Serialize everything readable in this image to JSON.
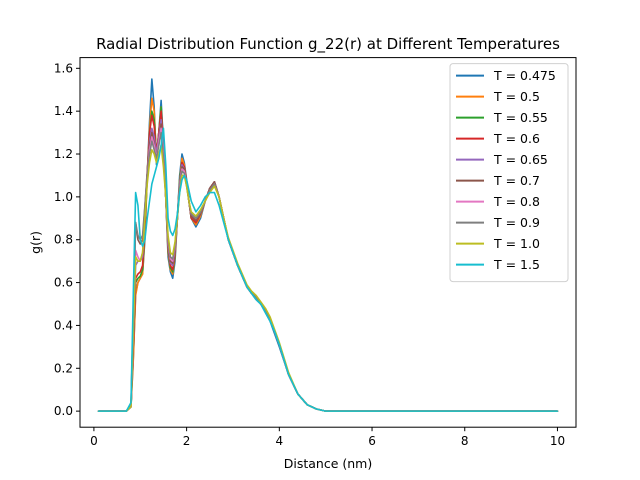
{
  "chart_data": {
    "type": "line",
    "title": "Radial Distribution Function g_22(r) at Different Temperatures",
    "xlabel": "Distance (nm)",
    "ylabel": "g(r)",
    "xlim": [
      -0.3,
      10.4
    ],
    "ylim": [
      -0.075,
      1.65
    ],
    "xticks": [
      "0",
      "2",
      "4",
      "6",
      "8",
      "10"
    ],
    "yticks": [
      "0.0",
      "0.2",
      "0.4",
      "0.6",
      "0.8",
      "1.0",
      "1.2",
      "1.4",
      "1.6"
    ],
    "grid": false,
    "legend_position": "top-right",
    "x": [
      0.1,
      0.7,
      0.8,
      0.85,
      0.9,
      0.95,
      1.0,
      1.05,
      1.1,
      1.15,
      1.2,
      1.25,
      1.3,
      1.35,
      1.4,
      1.45,
      1.5,
      1.55,
      1.6,
      1.65,
      1.7,
      1.75,
      1.8,
      1.85,
      1.9,
      1.95,
      2.0,
      2.05,
      2.1,
      2.2,
      2.3,
      2.4,
      2.5,
      2.6,
      2.7,
      2.8,
      2.9,
      3.0,
      3.1,
      3.2,
      3.3,
      3.4,
      3.5,
      3.6,
      3.7,
      3.8,
      3.9,
      4.0,
      4.2,
      4.4,
      4.6,
      4.8,
      5.0,
      5.2,
      5.4,
      5.6,
      5.8,
      6.0,
      7.0,
      8.0,
      9.0,
      10.0
    ],
    "series": [
      {
        "name": "T = 0.475",
        "color": "#1f77b4",
        "values": [
          0.0,
          0.0,
          0.02,
          0.25,
          0.55,
          0.6,
          0.62,
          0.64,
          0.8,
          1.1,
          1.35,
          1.55,
          1.42,
          1.15,
          1.3,
          1.45,
          1.25,
          1.0,
          0.72,
          0.65,
          0.62,
          0.7,
          0.9,
          1.1,
          1.2,
          1.16,
          1.08,
          0.98,
          0.9,
          0.86,
          0.9,
          0.98,
          1.04,
          1.07,
          1.0,
          0.9,
          0.8,
          0.74,
          0.68,
          0.63,
          0.58,
          0.55,
          0.52,
          0.5,
          0.46,
          0.42,
          0.36,
          0.3,
          0.17,
          0.08,
          0.03,
          0.01,
          0.0,
          0.0,
          0.0,
          0.0,
          0.0,
          0.0,
          0.0,
          0.0,
          0.0,
          0.0
        ]
      },
      {
        "name": "T = 0.5",
        "color": "#ff7f0e",
        "values": [
          0.0,
          0.0,
          0.02,
          0.24,
          0.54,
          0.6,
          0.62,
          0.64,
          0.82,
          1.1,
          1.32,
          1.46,
          1.4,
          1.18,
          1.3,
          1.42,
          1.24,
          1.0,
          0.74,
          0.66,
          0.64,
          0.72,
          0.9,
          1.08,
          1.18,
          1.15,
          1.07,
          0.98,
          0.9,
          0.87,
          0.91,
          0.98,
          1.04,
          1.07,
          1.0,
          0.9,
          0.8,
          0.74,
          0.68,
          0.63,
          0.58,
          0.55,
          0.53,
          0.5,
          0.47,
          0.43,
          0.37,
          0.31,
          0.17,
          0.08,
          0.03,
          0.01,
          0.0,
          0.0,
          0.0,
          0.0,
          0.0,
          0.0,
          0.0,
          0.0,
          0.0,
          0.0
        ]
      },
      {
        "name": "T = 0.55",
        "color": "#2ca02c",
        "values": [
          0.0,
          0.0,
          0.02,
          0.3,
          0.6,
          0.62,
          0.63,
          0.66,
          0.84,
          1.1,
          1.3,
          1.4,
          1.36,
          1.2,
          1.3,
          1.42,
          1.25,
          1.0,
          0.75,
          0.67,
          0.65,
          0.73,
          0.9,
          1.08,
          1.16,
          1.14,
          1.07,
          0.98,
          0.9,
          0.88,
          0.92,
          0.98,
          1.04,
          1.07,
          1.0,
          0.9,
          0.8,
          0.74,
          0.68,
          0.63,
          0.58,
          0.55,
          0.53,
          0.5,
          0.47,
          0.43,
          0.37,
          0.31,
          0.17,
          0.08,
          0.03,
          0.01,
          0.0,
          0.0,
          0.0,
          0.0,
          0.0,
          0.0,
          0.0,
          0.0,
          0.0,
          0.0
        ]
      },
      {
        "name": "T = 0.6",
        "color": "#d62728",
        "values": [
          0.0,
          0.0,
          0.02,
          0.3,
          0.62,
          0.64,
          0.65,
          0.68,
          0.86,
          1.1,
          1.3,
          1.38,
          1.33,
          1.2,
          1.3,
          1.4,
          1.25,
          1.0,
          0.76,
          0.68,
          0.66,
          0.74,
          0.9,
          1.06,
          1.16,
          1.14,
          1.07,
          0.98,
          0.9,
          0.88,
          0.92,
          0.98,
          1.04,
          1.07,
          1.0,
          0.9,
          0.8,
          0.74,
          0.68,
          0.63,
          0.58,
          0.55,
          0.53,
          0.5,
          0.47,
          0.43,
          0.37,
          0.31,
          0.17,
          0.08,
          0.03,
          0.01,
          0.0,
          0.0,
          0.0,
          0.0,
          0.0,
          0.0,
          0.0,
          0.0,
          0.0,
          0.0
        ]
      },
      {
        "name": "T = 0.65",
        "color": "#9467bd",
        "values": [
          0.0,
          0.0,
          0.02,
          0.35,
          0.68,
          0.7,
          0.7,
          0.72,
          0.9,
          1.1,
          1.26,
          1.32,
          1.28,
          1.2,
          1.28,
          1.36,
          1.22,
          1.0,
          0.77,
          0.69,
          0.68,
          0.75,
          0.9,
          1.06,
          1.15,
          1.13,
          1.06,
          0.98,
          0.91,
          0.89,
          0.92,
          0.98,
          1.04,
          1.07,
          1.0,
          0.9,
          0.8,
          0.74,
          0.68,
          0.63,
          0.58,
          0.55,
          0.53,
          0.5,
          0.47,
          0.43,
          0.37,
          0.31,
          0.17,
          0.08,
          0.03,
          0.01,
          0.0,
          0.0,
          0.0,
          0.0,
          0.0,
          0.0,
          0.0,
          0.0,
          0.0,
          0.0
        ]
      },
      {
        "name": "T = 0.7",
        "color": "#8c564b",
        "values": [
          0.0,
          0.0,
          0.03,
          0.45,
          0.88,
          0.8,
          0.78,
          0.8,
          0.95,
          1.12,
          1.24,
          1.3,
          1.25,
          1.18,
          1.26,
          1.34,
          1.2,
          1.0,
          0.78,
          0.7,
          0.69,
          0.76,
          0.9,
          1.05,
          1.14,
          1.13,
          1.06,
          0.98,
          0.91,
          0.89,
          0.92,
          0.98,
          1.04,
          1.07,
          1.0,
          0.9,
          0.8,
          0.74,
          0.68,
          0.63,
          0.58,
          0.55,
          0.53,
          0.5,
          0.47,
          0.43,
          0.37,
          0.31,
          0.17,
          0.08,
          0.03,
          0.01,
          0.0,
          0.0,
          0.0,
          0.0,
          0.0,
          0.0,
          0.0,
          0.0,
          0.0,
          0.0
        ]
      },
      {
        "name": "T = 0.8",
        "color": "#e377c2",
        "values": [
          0.0,
          0.0,
          0.02,
          0.4,
          0.75,
          0.72,
          0.7,
          0.74,
          0.92,
          1.1,
          1.22,
          1.28,
          1.24,
          1.18,
          1.26,
          1.32,
          1.2,
          1.0,
          0.79,
          0.71,
          0.7,
          0.77,
          0.9,
          1.05,
          1.13,
          1.12,
          1.06,
          0.98,
          0.92,
          0.9,
          0.93,
          0.98,
          1.03,
          1.06,
          1.0,
          0.9,
          0.8,
          0.74,
          0.68,
          0.63,
          0.58,
          0.55,
          0.53,
          0.5,
          0.47,
          0.43,
          0.37,
          0.31,
          0.17,
          0.08,
          0.03,
          0.01,
          0.0,
          0.0,
          0.0,
          0.0,
          0.0,
          0.0,
          0.0,
          0.0,
          0.0,
          0.0
        ]
      },
      {
        "name": "T = 0.9",
        "color": "#7f7f7f",
        "values": [
          0.0,
          0.0,
          0.03,
          0.45,
          0.88,
          0.82,
          0.8,
          0.82,
          0.96,
          1.1,
          1.2,
          1.26,
          1.22,
          1.18,
          1.24,
          1.3,
          1.18,
          1.0,
          0.8,
          0.72,
          0.71,
          0.78,
          0.9,
          1.04,
          1.12,
          1.11,
          1.05,
          0.98,
          0.92,
          0.9,
          0.93,
          0.98,
          1.03,
          1.06,
          1.0,
          0.9,
          0.8,
          0.74,
          0.68,
          0.63,
          0.58,
          0.55,
          0.53,
          0.5,
          0.47,
          0.43,
          0.37,
          0.31,
          0.17,
          0.08,
          0.03,
          0.01,
          0.0,
          0.0,
          0.0,
          0.0,
          0.0,
          0.0,
          0.0,
          0.0,
          0.0,
          0.0
        ]
      },
      {
        "name": "T = 1.0",
        "color": "#bcbd22",
        "values": [
          0.0,
          0.0,
          0.02,
          0.38,
          0.72,
          0.7,
          0.7,
          0.74,
          0.9,
          1.06,
          1.16,
          1.22,
          1.2,
          1.16,
          1.2,
          1.24,
          1.14,
          1.0,
          0.82,
          0.74,
          0.73,
          0.79,
          0.9,
          1.02,
          1.1,
          1.1,
          1.05,
          0.98,
          0.93,
          0.91,
          0.94,
          0.98,
          1.02,
          1.05,
          1.0,
          0.9,
          0.81,
          0.75,
          0.69,
          0.64,
          0.59,
          0.56,
          0.54,
          0.51,
          0.48,
          0.44,
          0.38,
          0.32,
          0.18,
          0.08,
          0.03,
          0.01,
          0.0,
          0.0,
          0.0,
          0.0,
          0.0,
          0.0,
          0.0,
          0.0,
          0.0,
          0.0
        ]
      },
      {
        "name": "T = 1.5",
        "color": "#17becf",
        "values": [
          0.0,
          0.0,
          0.04,
          0.55,
          1.02,
          0.96,
          0.8,
          0.77,
          0.8,
          0.9,
          0.98,
          1.06,
          1.1,
          1.14,
          1.18,
          1.24,
          1.32,
          1.15,
          0.9,
          0.84,
          0.82,
          0.85,
          0.92,
          1.02,
          1.08,
          1.1,
          1.08,
          1.03,
          0.98,
          0.93,
          0.96,
          1.0,
          1.02,
          1.02,
          0.96,
          0.88,
          0.8,
          0.74,
          0.68,
          0.63,
          0.58,
          0.55,
          0.52,
          0.5,
          0.46,
          0.42,
          0.37,
          0.31,
          0.17,
          0.08,
          0.03,
          0.01,
          0.0,
          0.0,
          0.0,
          0.0,
          0.0,
          0.0,
          0.0,
          0.0,
          0.0,
          0.0
        ]
      }
    ]
  }
}
